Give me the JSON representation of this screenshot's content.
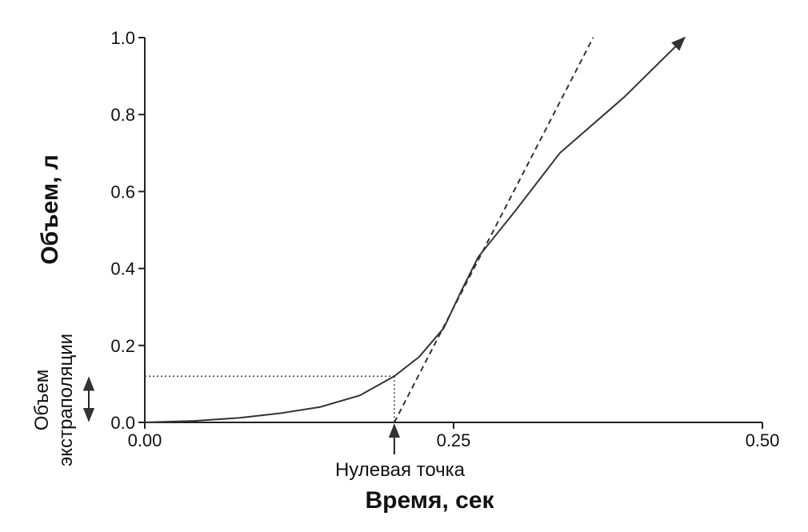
{
  "chart_data": {
    "type": "line",
    "x_label": "Время, сек",
    "y_label": "Объем, л",
    "xlim": [
      0,
      0.5
    ],
    "ylim": [
      0,
      1.0
    ],
    "xticks": [
      {
        "value": 0,
        "label": "0.00"
      },
      {
        "value": 0.25,
        "label": "0.25"
      },
      {
        "value": 0.5,
        "label": "0.50"
      }
    ],
    "yticks": [
      {
        "value": 0,
        "label": "0.0"
      },
      {
        "value": 0.2,
        "label": "0.2"
      },
      {
        "value": 0.4,
        "label": "0.4"
      },
      {
        "value": 0.6,
        "label": "0.6"
      },
      {
        "value": 0.8,
        "label": "0.8"
      },
      {
        "value": 1.0,
        "label": "1.0"
      }
    ],
    "series": [
      {
        "color": "#333333",
        "style": "solid",
        "x": [
          0,
          0.04,
          0.077,
          0.11,
          0.142,
          0.174,
          0.202,
          0.222,
          0.242,
          0.256,
          0.27,
          0.3,
          0.336,
          0.388,
          0.437
        ],
        "values": [
          0,
          0.004,
          0.012,
          0.024,
          0.04,
          0.07,
          0.12,
          0.17,
          0.245,
          0.34,
          0.43,
          0.55,
          0.7,
          0.845,
          1.0
        ]
      },
      {
        "color": "#333333",
        "style": "dashed",
        "x": [
          0.202,
          0.363
        ],
        "values": [
          0,
          1.0
        ]
      }
    ],
    "zero_point": {
      "x": 0.202,
      "volume": 0.12
    },
    "zero_point_label": "Нулевая точка",
    "extrapolation_label": [
      "Объем",
      "экстраполяции"
    ]
  }
}
